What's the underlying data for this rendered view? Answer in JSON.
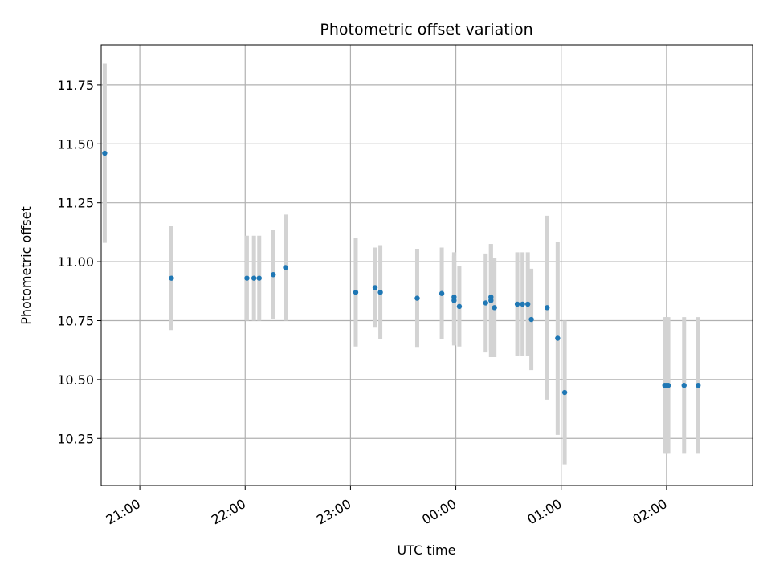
{
  "chart_data": {
    "type": "scatter",
    "title": "Photometric offset variation",
    "xlabel": "UTC time",
    "ylabel": "Photometric offset",
    "x_tick_labels": [
      "21:00",
      "22:00",
      "23:00",
      "00:00",
      "01:00",
      "02:00"
    ],
    "x_tick_times": [
      "21:00",
      "22:00",
      "23:00",
      "00:00",
      "01:00",
      "02:00"
    ],
    "y_ticks": [
      10.25,
      10.5,
      10.75,
      11.0,
      11.25,
      11.5,
      11.75
    ],
    "y_tick_labels": [
      "10.25",
      "10.50",
      "10.75",
      "11.00",
      "11.25",
      "11.50",
      "11.75"
    ],
    "xlim": [
      "20:38",
      "02:49"
    ],
    "ylim": [
      10.05,
      11.92
    ],
    "grid": true,
    "colors": {
      "point": "#1f77b4",
      "errorbar": "#d3d3d3",
      "grid": "#b0b0b0",
      "axes": "#000000"
    },
    "points": [
      {
        "t": "20:40",
        "y": 11.46,
        "err": 0.38
      },
      {
        "t": "21:18",
        "y": 10.93,
        "err": 0.22
      },
      {
        "t": "22:01",
        "y": 10.93,
        "err": 0.18
      },
      {
        "t": "22:05",
        "y": 10.93,
        "err": 0.18
      },
      {
        "t": "22:08",
        "y": 10.93,
        "err": 0.18
      },
      {
        "t": "22:16",
        "y": 10.945,
        "err": 0.19
      },
      {
        "t": "22:23",
        "y": 10.975,
        "err": 0.225
      },
      {
        "t": "23:03",
        "y": 10.87,
        "err": 0.23
      },
      {
        "t": "23:14",
        "y": 10.89,
        "err": 0.17
      },
      {
        "t": "23:17",
        "y": 10.87,
        "err": 0.2
      },
      {
        "t": "23:38",
        "y": 10.845,
        "err": 0.21
      },
      {
        "t": "23:52",
        "y": 10.865,
        "err": 0.195
      },
      {
        "t": "23:59",
        "y": 10.85,
        "err": 0.19
      },
      {
        "t": "23:59",
        "y": 10.835,
        "err": 0.19
      },
      {
        "t": "00:02",
        "y": 10.81,
        "err": 0.17
      },
      {
        "t": "00:17",
        "y": 10.825,
        "err": 0.21
      },
      {
        "t": "00:20",
        "y": 10.835,
        "err": 0.24
      },
      {
        "t": "00:20",
        "y": 10.85,
        "err": 0.225
      },
      {
        "t": "00:22",
        "y": 10.805,
        "err": 0.21
      },
      {
        "t": "00:35",
        "y": 10.82,
        "err": 0.22
      },
      {
        "t": "00:38",
        "y": 10.82,
        "err": 0.22
      },
      {
        "t": "00:41",
        "y": 10.82,
        "err": 0.22
      },
      {
        "t": "00:43",
        "y": 10.755,
        "err": 0.215
      },
      {
        "t": "00:52",
        "y": 10.805,
        "err": 0.39
      },
      {
        "t": "00:58",
        "y": 10.675,
        "err": 0.41
      },
      {
        "t": "01:02",
        "y": 10.445,
        "err": 0.305
      },
      {
        "t": "01:59",
        "y": 10.475,
        "err": 0.29
      },
      {
        "t": "02:00",
        "y": 10.475,
        "err": 0.29
      },
      {
        "t": "02:01",
        "y": 10.475,
        "err": 0.29
      },
      {
        "t": "02:10",
        "y": 10.475,
        "err": 0.29
      },
      {
        "t": "02:18",
        "y": 10.475,
        "err": 0.29
      }
    ]
  }
}
